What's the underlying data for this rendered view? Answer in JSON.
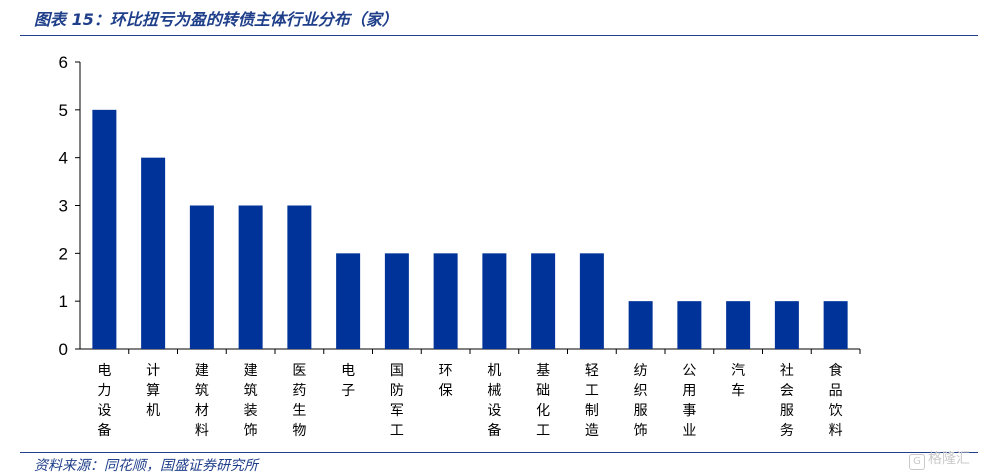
{
  "title": "图表 15：环比扭亏为盈的转债主体行业分布（家）",
  "source": "资料来源：同花顺，国盛证券研究所",
  "watermark": {
    "icon": "G",
    "text": "格隆汇"
  },
  "colors": {
    "bar": "#003399",
    "text_accent": "#1f3f8a",
    "axis": "#000000"
  },
  "chart_data": {
    "type": "bar",
    "categories": [
      "电力设备",
      "计算机",
      "建筑材料",
      "建筑装饰",
      "医药生物",
      "电子",
      "国防军工",
      "环保",
      "机械设备",
      "基础化工",
      "轻工制造",
      "纺织服饰",
      "公用事业",
      "汽车",
      "社会服务",
      "食品饮料"
    ],
    "values": [
      5,
      4,
      3,
      3,
      3,
      2,
      2,
      2,
      2,
      2,
      2,
      1,
      1,
      1,
      1,
      1
    ],
    "ylim": [
      0,
      6
    ],
    "yticks": [
      0,
      1,
      2,
      3,
      4,
      5,
      6
    ],
    "xlabel": "",
    "ylabel": "",
    "grid": false,
    "legend": "none"
  }
}
